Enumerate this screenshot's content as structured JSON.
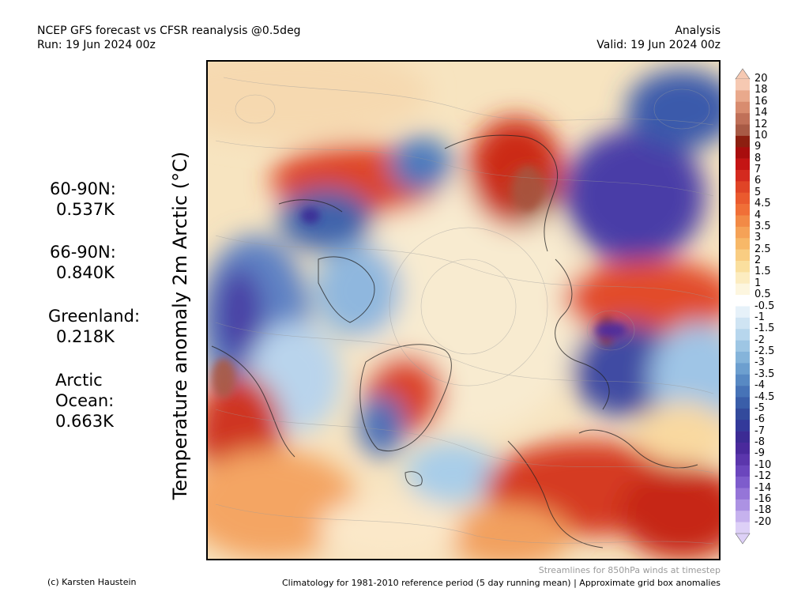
{
  "header": {
    "title": "NCEP GFS forecast vs CFSR reanalysis @0.5deg",
    "run": "Run: 19 Jun 2024 00z",
    "mode": "Analysis",
    "valid": "Valid: 19 Jun 2024 00z"
  },
  "ylabel": "Temperature anomaly 2m Arctic (°C)",
  "stats": [
    {
      "label": "60-90N:",
      "value": "0.537K"
    },
    {
      "label": "66-90N:",
      "value": "0.840K"
    },
    {
      "label": "Greenland:",
      "value": "0.218K"
    },
    {
      "label": "Arctic",
      "label2": "Ocean:",
      "value": "0.663K"
    }
  ],
  "colorbar": {
    "labels": [
      "20",
      "18",
      "16",
      "14",
      "12",
      "10",
      "9",
      "8",
      "7",
      "6",
      "5",
      "4.5",
      "4",
      "3.5",
      "3",
      "2.5",
      "2",
      "1.5",
      "1",
      "0.5",
      "-0.5",
      "-1",
      "-1.5",
      "-2",
      "-2.5",
      "-3",
      "-3.5",
      "-4",
      "-4.5",
      "-5",
      "-6",
      "-7",
      "-8",
      "-9",
      "-10",
      "-12",
      "-14",
      "-16",
      "-18",
      "-20"
    ],
    "colors": [
      "#f6c9b2",
      "#e9a98c",
      "#d88c6f",
      "#c07058",
      "#a85a45",
      "#8c1f10",
      "#a80d0d",
      "#c41414",
      "#d42a1e",
      "#e04426",
      "#ea5a2e",
      "#f06f37",
      "#f28a46",
      "#f5a257",
      "#f7b868",
      "#f9cd82",
      "#fadf9e",
      "#fcecc0",
      "#fdf6df",
      "#ffffff",
      "#e6f1f9",
      "#cfe4f3",
      "#b7d6ed",
      "#9ec6e4",
      "#85b4da",
      "#6d9fcf",
      "#5889c3",
      "#4773b7",
      "#3a5ea9",
      "#334a9c",
      "#33399a",
      "#3c2b94",
      "#4a2a9c",
      "#5b36ac",
      "#6b46bd",
      "#7e5ccc",
      "#9575d8",
      "#ac92e3",
      "#c6b2ee",
      "#ddd0f7"
    ]
  },
  "footer": {
    "credit": "(c) Karsten Haustein",
    "climatology": "Climatology for 1981-2010 reference period (5 day running mean) | Approximate grid box anomalies",
    "streamlines": "Streamlines for 850hPa winds at timestep"
  }
}
